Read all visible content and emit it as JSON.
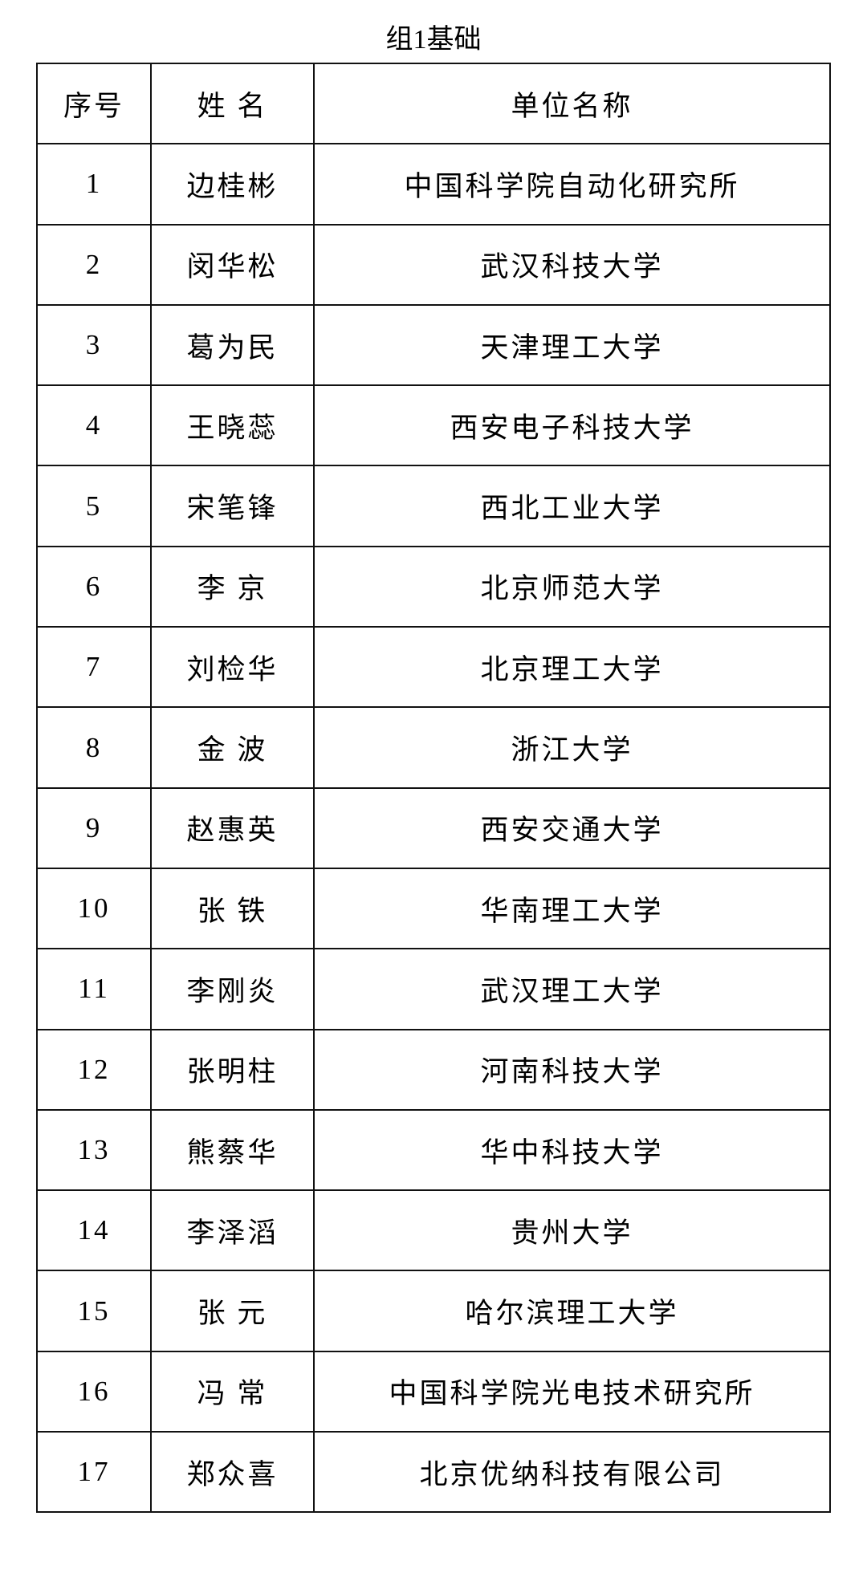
{
  "title": "组1基础",
  "headers": [
    "序号",
    "姓 名",
    "单位名称"
  ],
  "rows": [
    [
      "1",
      "边桂彬",
      "中国科学院自动化研究所"
    ],
    [
      "2",
      "闵华松",
      "武汉科技大学"
    ],
    [
      "3",
      "葛为民",
      "天津理工大学"
    ],
    [
      "4",
      "王晓蕊",
      "西安电子科技大学"
    ],
    [
      "5",
      "宋笔锋",
      "西北工业大学"
    ],
    [
      "6",
      "李 京",
      "北京师范大学"
    ],
    [
      "7",
      "刘检华",
      "北京理工大学"
    ],
    [
      "8",
      "金 波",
      "浙江大学"
    ],
    [
      "9",
      "赵惠英",
      "西安交通大学"
    ],
    [
      "10",
      "张 铁",
      "华南理工大学"
    ],
    [
      "11",
      "李刚炎",
      "武汉理工大学"
    ],
    [
      "12",
      "张明柱",
      "河南科技大学"
    ],
    [
      "13",
      "熊蔡华",
      "华中科技大学"
    ],
    [
      "14",
      "李泽滔",
      "贵州大学"
    ],
    [
      "15",
      "张 元",
      "哈尔滨理工大学"
    ],
    [
      "16",
      "冯 常",
      "中国科学院光电技术研究所"
    ],
    [
      "17",
      "郑众喜",
      "北京优纳科技有限公司"
    ]
  ]
}
